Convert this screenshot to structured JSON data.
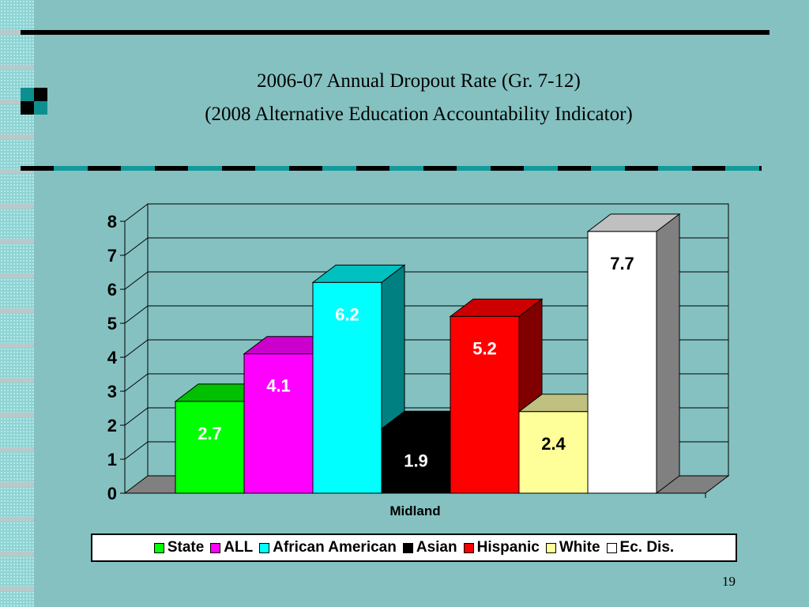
{
  "slide": {
    "title_line1": "2006-07 Annual Dropout Rate (Gr. 7-12)",
    "title_line2": "(2008 Alternative Education Accountability Indicator)",
    "page_number": "19"
  },
  "chart_data": {
    "type": "bar",
    "categories": [
      "Midland"
    ],
    "xlabel": "Midland",
    "ylim": [
      0,
      8
    ],
    "yticks": [
      0,
      1,
      2,
      3,
      4,
      5,
      6,
      7,
      8
    ],
    "grid": true,
    "legend_position": "bottom",
    "series": [
      {
        "name": "State",
        "values": [
          2.7
        ],
        "label": "2.7",
        "color": "#00ff00",
        "top_color": "#00c000",
        "side_color": "#008000",
        "label_color": "#ffffff"
      },
      {
        "name": "ALL",
        "values": [
          4.1
        ],
        "label": "4.1",
        "color": "#ff00ff",
        "top_color": "#cc00cc",
        "side_color": "#800080",
        "label_color": "#ffffff"
      },
      {
        "name": "African American",
        "values": [
          6.2
        ],
        "label": "6.2",
        "color": "#00ffff",
        "top_color": "#00c0c0",
        "side_color": "#008080",
        "label_color": "#ffffff"
      },
      {
        "name": "Asian",
        "values": [
          1.9
        ],
        "label": "1.9",
        "color": "#000000",
        "top_color": "#000000",
        "side_color": "#000000",
        "label_color": "#ffffff"
      },
      {
        "name": "Hispanic",
        "values": [
          5.2
        ],
        "label": "5.2",
        "color": "#ff0000",
        "top_color": "#cc0000",
        "side_color": "#800000",
        "label_color": "#ffffff"
      },
      {
        "name": "White",
        "values": [
          2.4
        ],
        "label": "2.4",
        "color": "#ffff99",
        "top_color": "#c0c080",
        "side_color": "#808066",
        "label_color": "#000000"
      },
      {
        "name": "Ec. Dis.",
        "values": [
          7.7
        ],
        "label": "7.7",
        "color": "#ffffff",
        "top_color": "#c0c0c0",
        "side_color": "#808080",
        "label_color": "#000000"
      }
    ]
  }
}
